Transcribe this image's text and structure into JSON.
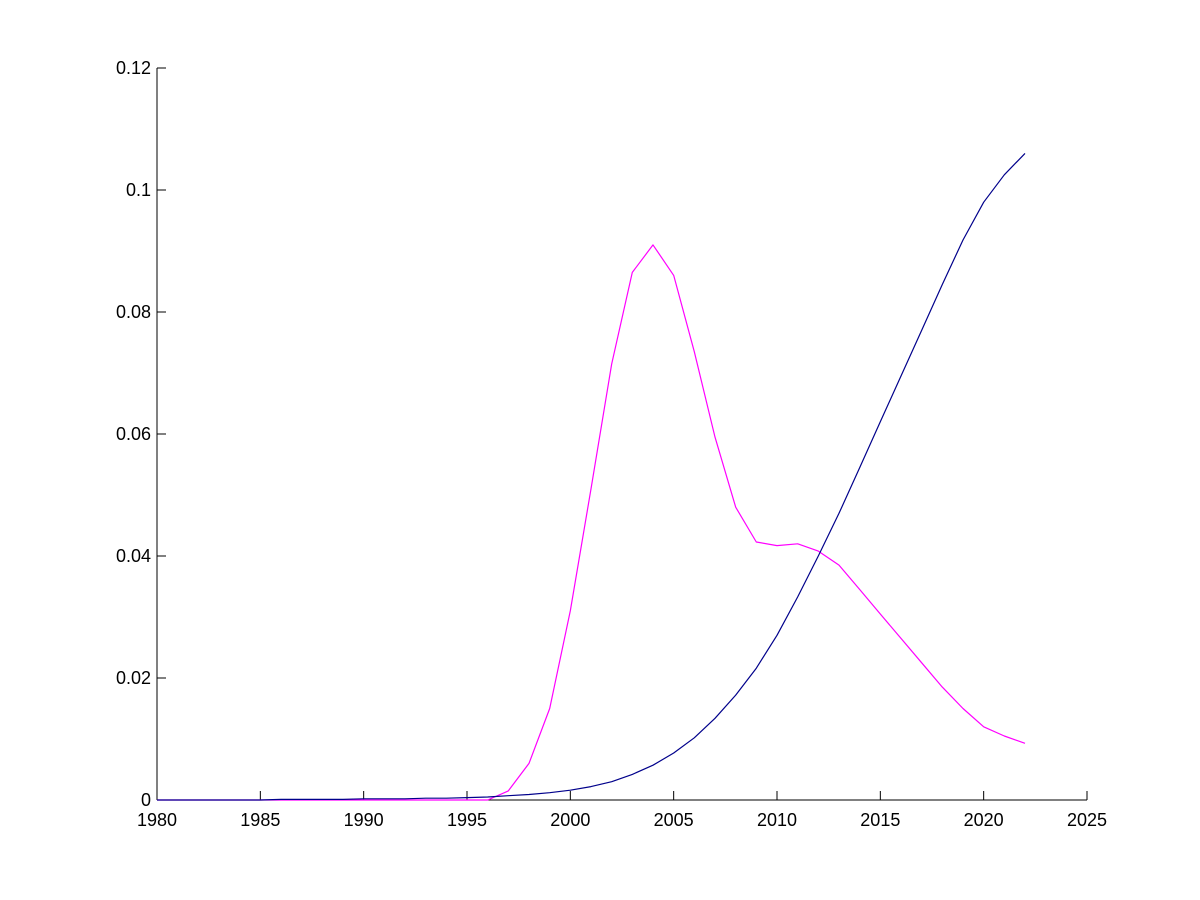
{
  "chart_data": {
    "type": "line",
    "title": "",
    "xlabel": "",
    "ylabel": "",
    "xlim": [
      1980,
      2025
    ],
    "ylim": [
      0,
      0.12
    ],
    "grid": false,
    "x_ticks": [
      1980,
      1985,
      1990,
      1995,
      2000,
      2005,
      2010,
      2015,
      2020,
      2025
    ],
    "x_tick_labels": [
      "1980",
      "1985",
      "1990",
      "1995",
      "2000",
      "2005",
      "2010",
      "2015",
      "2020",
      "2025"
    ],
    "y_ticks": [
      0,
      0.02,
      0.04,
      0.06,
      0.08,
      0.1,
      0.12
    ],
    "y_tick_labels": [
      "0",
      "0.02",
      "0.04",
      "0.06",
      "0.08",
      "0.1",
      "0.12"
    ],
    "x": [
      1980,
      1981,
      1982,
      1983,
      1984,
      1985,
      1986,
      1987,
      1988,
      1989,
      1990,
      1991,
      1992,
      1993,
      1994,
      1995,
      1996,
      1997,
      1998,
      1999,
      2000,
      2001,
      2002,
      2003,
      2004,
      2005,
      2006,
      2007,
      2008,
      2009,
      2010,
      2011,
      2012,
      2013,
      2014,
      2015,
      2016,
      2017,
      2018,
      2019,
      2020,
      2021,
      2022
    ],
    "series": [
      {
        "color": "#ff00ff",
        "values": [
          0,
          0,
          0,
          0,
          0,
          0,
          0,
          0,
          0,
          0,
          0,
          0,
          0,
          0,
          0,
          0,
          0,
          0.0015,
          0.006,
          0.015,
          0.031,
          0.051,
          0.0715,
          0.0865,
          0.091,
          0.086,
          0.0735,
          0.0595,
          0.048,
          0.0423,
          0.0417,
          0.042,
          0.0408,
          0.0385,
          0.0345,
          0.0305,
          0.0265,
          0.0225,
          0.0185,
          0.015,
          0.012,
          0.0105,
          0.0093
        ]
      },
      {
        "color": "#00008b",
        "values": [
          0,
          0,
          0,
          0,
          0,
          0,
          0.0001,
          0.0001,
          0.0001,
          0.0001,
          0.0002,
          0.0002,
          0.0002,
          0.0003,
          0.0003,
          0.0004,
          0.0005,
          0.0007,
          0.0009,
          0.0012,
          0.0016,
          0.0022,
          0.003,
          0.0042,
          0.0057,
          0.0077,
          0.0102,
          0.0134,
          0.0172,
          0.0216,
          0.027,
          0.0333,
          0.04,
          0.047,
          0.0545,
          0.062,
          0.0695,
          0.077,
          0.0845,
          0.0918,
          0.098,
          0.1025,
          0.106
        ]
      }
    ]
  }
}
